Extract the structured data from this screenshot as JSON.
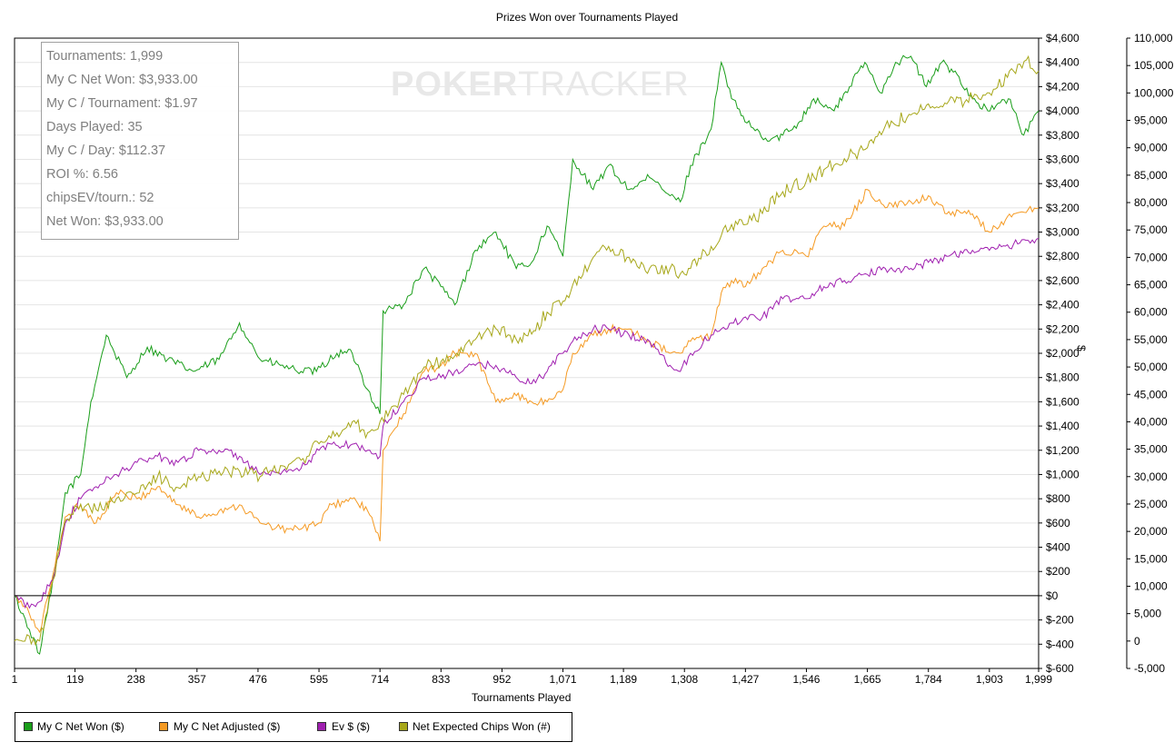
{
  "chart_data": {
    "type": "line",
    "title": "Prizes Won over Tournaments Played",
    "xlabel": "Tournaments Played",
    "ylabel": "$",
    "xlim": [
      1,
      1999
    ],
    "ylim": [
      -600,
      4600
    ],
    "y2lim": [
      -5000,
      110000
    ],
    "x_ticks": [
      "1",
      "119",
      "238",
      "357",
      "476",
      "595",
      "714",
      "833",
      "952",
      "1,071",
      "1,189",
      "1,308",
      "1,427",
      "1,546",
      "1,665",
      "1,784",
      "1,903",
      "1,999"
    ],
    "y_ticks": [
      "$-600",
      "$-400",
      "$-200",
      "$0",
      "$200",
      "$400",
      "$600",
      "$800",
      "$1,000",
      "$1,200",
      "$1,400",
      "$1,600",
      "$1,800",
      "$2,000",
      "$2,200",
      "$2,400",
      "$2,600",
      "$2,800",
      "$3,000",
      "$3,200",
      "$3,400",
      "$3,600",
      "$3,800",
      "$4,000",
      "$4,200",
      "$4,400",
      "$4,600"
    ],
    "y2_ticks": [
      "-5,000",
      "0",
      "5,000",
      "10,000",
      "15,000",
      "20,000",
      "25,000",
      "30,000",
      "35,000",
      "40,000",
      "45,000",
      "50,000",
      "55,000",
      "60,000",
      "65,000",
      "70,000",
      "75,000",
      "80,000",
      "85,000",
      "90,000",
      "95,000",
      "100,000",
      "105,000",
      "110,000"
    ],
    "series": [
      {
        "name": "My C Net Won ($)",
        "color": "#1a9e1a",
        "axis": "left",
        "x": [
          1,
          30,
          50,
          80,
          100,
          130,
          150,
          180,
          220,
          260,
          300,
          350,
          400,
          440,
          480,
          520,
          560,
          590,
          630,
          660,
          690,
          714,
          720,
          760,
          800,
          833,
          860,
          900,
          940,
          980,
          1010,
          1040,
          1071,
          1090,
          1130,
          1160,
          1200,
          1240,
          1280,
          1300,
          1320,
          1360,
          1380,
          1400,
          1430,
          1470,
          1500,
          1530,
          1560,
          1600,
          1630,
          1660,
          1690,
          1720,
          1750,
          1780,
          1810,
          1840,
          1870,
          1900,
          1940,
          1970,
          1999
        ],
        "y": [
          0,
          -280,
          -480,
          200,
          850,
          1000,
          1600,
          2150,
          1800,
          2050,
          1950,
          1850,
          1950,
          2250,
          1950,
          1900,
          1850,
          1850,
          2000,
          2000,
          1700,
          1500,
          2350,
          2400,
          2700,
          2550,
          2400,
          2850,
          3000,
          2700,
          2750,
          3050,
          2800,
          3600,
          3350,
          3550,
          3350,
          3450,
          3300,
          3250,
          3550,
          3850,
          4400,
          4100,
          3900,
          3750,
          3800,
          3900,
          4100,
          4000,
          4200,
          4400,
          4150,
          4400,
          4450,
          4200,
          4400,
          4300,
          4100,
          4000,
          4100,
          3800,
          4000
        ]
      },
      {
        "name": "My C Net Adjusted ($)",
        "color": "#f59a23",
        "axis": "left",
        "x": [
          1,
          30,
          50,
          80,
          100,
          130,
          160,
          200,
          240,
          280,
          320,
          360,
          400,
          440,
          480,
          520,
          560,
          595,
          620,
          660,
          690,
          714,
          720,
          760,
          800,
          833,
          860,
          900,
          940,
          980,
          1010,
          1040,
          1071,
          1090,
          1130,
          1160,
          1200,
          1240,
          1280,
          1300,
          1320,
          1360,
          1380,
          1400,
          1427,
          1460,
          1500,
          1546,
          1580,
          1620,
          1665,
          1700,
          1750,
          1784,
          1820,
          1870,
          1903,
          1950,
          1999
        ],
        "y": [
          0,
          -150,
          -300,
          250,
          650,
          750,
          600,
          850,
          800,
          900,
          750,
          650,
          700,
          750,
          600,
          550,
          550,
          600,
          750,
          800,
          700,
          450,
          1200,
          1500,
          1850,
          1900,
          2000,
          2000,
          1600,
          1650,
          1600,
          1600,
          1700,
          2000,
          2150,
          2200,
          2200,
          2100,
          2000,
          2000,
          2100,
          2150,
          2500,
          2600,
          2550,
          2700,
          2850,
          2800,
          3050,
          3050,
          3350,
          3200,
          3250,
          3300,
          3150,
          3150,
          3000,
          3150,
          3200
        ]
      },
      {
        "name": "Ev $ ($)",
        "color": "#a020b0",
        "axis": "left",
        "x": [
          1,
          30,
          50,
          80,
          100,
          130,
          160,
          200,
          240,
          280,
          320,
          360,
          400,
          440,
          480,
          520,
          560,
          595,
          620,
          660,
          690,
          714,
          720,
          760,
          800,
          833,
          860,
          900,
          940,
          980,
          1010,
          1040,
          1071,
          1090,
          1130,
          1160,
          1200,
          1240,
          1280,
          1300,
          1320,
          1360,
          1380,
          1400,
          1427,
          1460,
          1500,
          1546,
          1580,
          1620,
          1665,
          1700,
          1750,
          1784,
          1820,
          1870,
          1903,
          1950,
          1999
        ],
        "y": [
          0,
          -100,
          -50,
          200,
          600,
          800,
          900,
          1000,
          1100,
          1150,
          1100,
          1200,
          1200,
          1150,
          1000,
          1000,
          1050,
          1200,
          1250,
          1250,
          1200,
          1150,
          1400,
          1600,
          1800,
          1800,
          1850,
          1900,
          1900,
          1800,
          1750,
          1850,
          2000,
          2100,
          2200,
          2200,
          2150,
          2100,
          1900,
          1850,
          2000,
          2150,
          2200,
          2250,
          2300,
          2300,
          2450,
          2450,
          2550,
          2600,
          2650,
          2700,
          2700,
          2750,
          2800,
          2850,
          2850,
          2900,
          2950
        ]
      },
      {
        "name": "Net Expected Chips Won (#)",
        "color": "#a7a71a",
        "axis": "right",
        "x": [
          1,
          50,
          80,
          100,
          130,
          160,
          200,
          240,
          280,
          320,
          360,
          400,
          440,
          480,
          520,
          560,
          595,
          630,
          660,
          690,
          714,
          760,
          800,
          833,
          860,
          900,
          940,
          980,
          1010,
          1040,
          1071,
          1090,
          1130,
          1160,
          1200,
          1240,
          1280,
          1300,
          1320,
          1360,
          1380,
          1400,
          1427,
          1460,
          1500,
          1546,
          1580,
          1620,
          1665,
          1700,
          1750,
          1784,
          1820,
          1870,
          1903,
          1950,
          1975,
          1999
        ],
        "y": [
          0,
          0,
          12000,
          22000,
          25000,
          24000,
          26000,
          27000,
          30000,
          28000,
          30000,
          31000,
          31000,
          30000,
          32000,
          33000,
          36000,
          38000,
          40000,
          38000,
          40000,
          45000,
          50000,
          51000,
          52000,
          55000,
          57000,
          55000,
          56000,
          60000,
          62000,
          65000,
          70000,
          72000,
          70000,
          68000,
          68000,
          67000,
          68000,
          72000,
          74000,
          76000,
          76000,
          78000,
          82000,
          84000,
          86000,
          88000,
          90000,
          94000,
          96000,
          98000,
          98000,
          99000,
          100000,
          104000,
          106000,
          104000
        ]
      }
    ]
  },
  "stats": {
    "tournaments": "Tournaments: 1,999",
    "net_won": "My C Net Won: $3,933.00",
    "per_tournament": "My C / Tournament: $1.97",
    "days": "Days Played: 35",
    "per_day": "My C / Day: $112.37",
    "roi": "ROI %: 6.56",
    "chips_ev": "chipsEV/tourn.: 52",
    "net_won2": "Net Won: $3,933.00"
  },
  "watermark": {
    "bold": "POKER",
    "light": "TRACKER"
  }
}
